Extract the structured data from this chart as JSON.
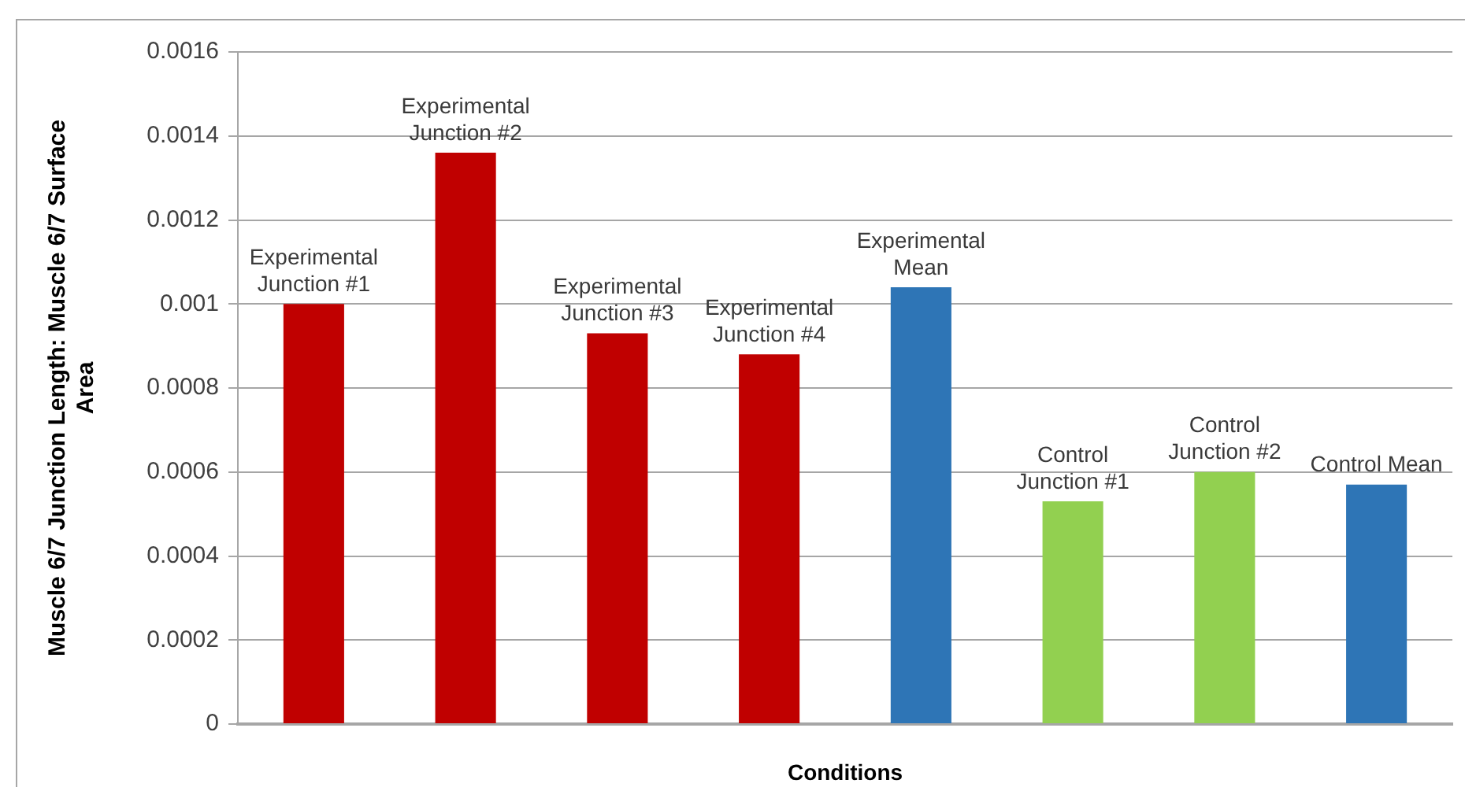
{
  "chart_data": {
    "type": "bar",
    "categories": [
      "Experimental Junction #1",
      "Experimental Junction #2",
      "Experimental Junction #3",
      "Experimental Junction #4",
      "Experimental Mean",
      "Control Junction #1",
      "Control Junction #2",
      "Control Mean"
    ],
    "values": [
      0.001,
      0.00136,
      0.00093,
      0.00088,
      0.00104,
      0.00053,
      0.0006,
      0.00057
    ],
    "colors": [
      "#c00000",
      "#c00000",
      "#c00000",
      "#c00000",
      "#2e75b6",
      "#92d050",
      "#92d050",
      "#2e75b6"
    ],
    "xlabel": "Conditions",
    "ylabel": "Muscle 6/7 Junction Length: Muscle 6/7 Surface Area",
    "ylim": [
      0,
      0.0016
    ],
    "yticks": [
      0,
      0.0002,
      0.0004,
      0.0006,
      0.0008,
      0.001,
      0.0012,
      0.0014,
      0.0016
    ],
    "grid": "y"
  }
}
